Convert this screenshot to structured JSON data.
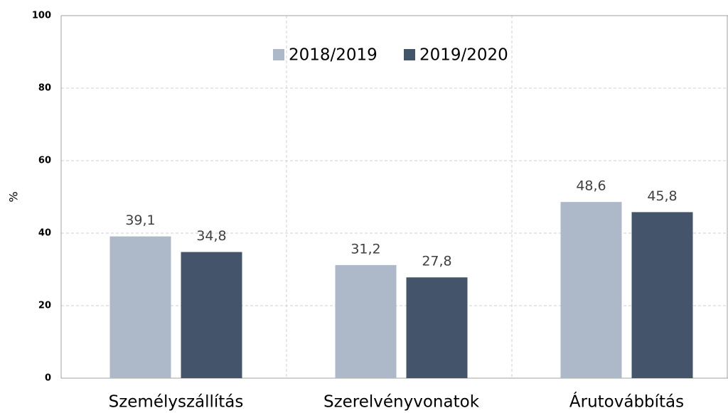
{
  "chart_data": {
    "type": "bar",
    "categories": [
      "Személyszállítás",
      "Szerelvényvonatok",
      "Árutovábbítás"
    ],
    "series": [
      {
        "name": "2018/2019",
        "color": "#adb8c9",
        "values": [
          39.1,
          31.2,
          48.6
        ],
        "value_labels": [
          "39,1",
          "31,2",
          "48,6"
        ]
      },
      {
        "name": "2019/2020",
        "color": "#44546a",
        "values": [
          34.8,
          27.8,
          45.8
        ],
        "value_labels": [
          "34,8",
          "27,8",
          "45,8"
        ]
      }
    ],
    "y_label": "%",
    "ylim": [
      0,
      100
    ],
    "yticks": [
      0,
      20,
      40,
      60,
      80,
      100
    ],
    "grid": true,
    "legend": "top"
  }
}
